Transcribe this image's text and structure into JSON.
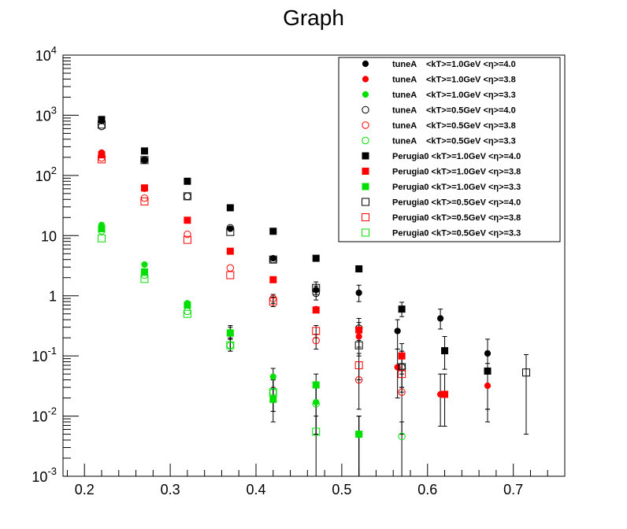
{
  "chart_data": {
    "type": "scatter",
    "title": "Graph",
    "xlabel": "",
    "ylabel": "",
    "y_scale": "log",
    "xlim": [
      0.175,
      0.76
    ],
    "ylim": [
      0.001,
      10000
    ],
    "x_ticks": [
      {
        "value": 0.2,
        "label": "0.2"
      },
      {
        "value": 0.3,
        "label": "0.3"
      },
      {
        "value": 0.4,
        "label": "0.4"
      },
      {
        "value": 0.5,
        "label": "0.5"
      },
      {
        "value": 0.6,
        "label": "0.6"
      },
      {
        "value": 0.7,
        "label": "0.7"
      }
    ],
    "y_ticks": [
      {
        "value": 0.001,
        "base": "10",
        "exp": "-3",
        "plain": ""
      },
      {
        "value": 0.01,
        "base": "10",
        "exp": "-2",
        "plain": ""
      },
      {
        "value": 0.1,
        "base": "10",
        "exp": "-1",
        "plain": ""
      },
      {
        "value": 1,
        "base": "",
        "exp": "",
        "plain": "1"
      },
      {
        "value": 10,
        "base": "",
        "exp": "",
        "plain": "10"
      },
      {
        "value": 100,
        "base": "10",
        "exp": "2",
        "plain": ""
      },
      {
        "value": 1000,
        "base": "10",
        "exp": "3",
        "plain": ""
      },
      {
        "value": 10000,
        "base": "10",
        "exp": "4",
        "plain": ""
      }
    ],
    "grid": false,
    "legend_position": "top-right",
    "series": [
      {
        "name": "tuneA    <kT>=1.0GeV <η>=4.0",
        "marker": "circle",
        "filled": true,
        "color": "#000000",
        "points": [
          [
            0.22,
            800,
            null,
            null
          ],
          [
            0.27,
            180,
            null,
            null
          ],
          [
            0.32,
            80,
            null,
            null
          ],
          [
            0.37,
            13,
            null,
            null
          ],
          [
            0.42,
            4.2,
            null,
            null
          ],
          [
            0.47,
            1.25,
            null,
            null
          ],
          [
            0.52,
            1.12,
            0.8,
            1.5
          ],
          [
            0.565,
            0.26,
            0.13,
            0.4
          ],
          [
            0.615,
            0.42,
            0.28,
            0.6
          ],
          [
            0.67,
            0.11,
            0.013,
            0.19
          ]
        ]
      },
      {
        "name": "tuneA    <kT>=1.0GeV <η>=3.8",
        "marker": "circle",
        "filled": true,
        "color": "#ff0000",
        "points": [
          [
            0.22,
            240,
            null,
            null
          ],
          [
            0.27,
            60,
            null,
            null
          ],
          [
            0.32,
            18,
            null,
            null
          ],
          [
            0.37,
            5.5,
            null,
            null
          ],
          [
            0.42,
            1.85,
            null,
            null
          ],
          [
            0.47,
            0.6,
            null,
            null
          ],
          [
            0.52,
            0.21,
            0.14,
            0.29
          ],
          [
            0.565,
            0.065,
            0.02,
            0.13
          ],
          [
            0.615,
            0.023,
            0.0068,
            0.05
          ],
          [
            0.67,
            0.032,
            0.008,
            0.075
          ]
        ]
      },
      {
        "name": "tuneA    <kT>=1.0GeV <η>=3.3",
        "marker": "circle",
        "filled": true,
        "color": "#00e000",
        "points": [
          [
            0.22,
            15,
            null,
            null
          ],
          [
            0.27,
            3.3,
            null,
            null
          ],
          [
            0.32,
            0.75,
            null,
            null
          ],
          [
            0.37,
            0.25,
            0.2,
            0.32
          ],
          [
            0.42,
            0.045,
            0.028,
            0.062
          ],
          [
            0.47,
            0.017,
            0.005,
            0.03
          ],
          [
            0.52,
            0.005,
            0.001,
            0.01
          ]
        ]
      },
      {
        "name": "tuneA    <kT>=0.5GeV <η>=4.0",
        "marker": "circle",
        "filled": false,
        "color": "#000000",
        "points": [
          [
            0.22,
            650,
            null,
            null
          ],
          [
            0.27,
            180,
            null,
            null
          ],
          [
            0.32,
            45,
            null,
            null
          ],
          [
            0.37,
            13.5,
            null,
            null
          ],
          [
            0.42,
            4,
            null,
            null
          ],
          [
            0.47,
            1.1,
            0.85,
            1.45
          ],
          [
            0.52,
            0.29,
            0.2,
            0.42
          ],
          [
            0.57,
            0.065,
            0.03,
            0.12
          ]
        ]
      },
      {
        "name": "tuneA    <kT>=0.5GeV <η>=3.8",
        "marker": "circle",
        "filled": false,
        "color": "#ff0000",
        "points": [
          [
            0.22,
            195,
            null,
            null
          ],
          [
            0.27,
            42,
            null,
            null
          ],
          [
            0.32,
            10.5,
            null,
            null
          ],
          [
            0.37,
            2.9,
            null,
            null
          ],
          [
            0.42,
            0.9,
            0.75,
            1.05
          ],
          [
            0.47,
            0.18,
            0.13,
            0.23
          ],
          [
            0.52,
            0.04,
            0.013,
            0.08
          ],
          [
            0.57,
            0.025,
            0.005,
            0.06
          ]
        ]
      },
      {
        "name": "tuneA    <kT>=0.5GeV <η>=3.3",
        "marker": "circle",
        "filled": false,
        "color": "#00e000",
        "points": [
          [
            0.22,
            12,
            null,
            null
          ],
          [
            0.27,
            2.2,
            null,
            null
          ],
          [
            0.32,
            0.55,
            null,
            null
          ],
          [
            0.37,
            0.15,
            0.12,
            0.19
          ],
          [
            0.42,
            0.025,
            0.012,
            0.04
          ],
          [
            0.47,
            0.016,
            0.005,
            0.03
          ],
          [
            0.52,
            0.005,
            0.001,
            0.01
          ],
          [
            0.57,
            0.0046,
            0.001,
            0.008
          ]
        ]
      },
      {
        "name": "Perugia0 <kT>=1.0GeV <η>=4.0",
        "marker": "square",
        "filled": true,
        "color": "#000000",
        "points": [
          [
            0.22,
            850,
            null,
            null
          ],
          [
            0.27,
            255,
            null,
            null
          ],
          [
            0.32,
            80,
            null,
            null
          ],
          [
            0.37,
            29,
            null,
            null
          ],
          [
            0.42,
            11.8,
            null,
            null
          ],
          [
            0.47,
            4.2,
            null,
            null
          ],
          [
            0.52,
            2.8,
            null,
            null
          ],
          [
            0.57,
            0.6,
            0.45,
            0.78
          ],
          [
            0.62,
            0.122,
            0.06,
            0.21
          ],
          [
            0.67,
            0.056,
            0.013,
            0.12
          ]
        ]
      },
      {
        "name": "Perugia0 <kT>=1.0GeV <η>=3.8",
        "marker": "square",
        "filled": true,
        "color": "#ff0000",
        "points": [
          [
            0.22,
            220,
            null,
            null
          ],
          [
            0.27,
            62,
            null,
            null
          ],
          [
            0.32,
            18,
            null,
            null
          ],
          [
            0.37,
            5.5,
            null,
            null
          ],
          [
            0.42,
            1.85,
            null,
            null
          ],
          [
            0.47,
            0.58,
            null,
            null
          ],
          [
            0.52,
            0.27,
            0.18,
            0.36
          ],
          [
            0.57,
            0.1,
            0.05,
            0.16
          ],
          [
            0.62,
            0.023,
            0.0068,
            0.05
          ]
        ]
      },
      {
        "name": "Perugia0 <kT>=1.0GeV <η>=3.3",
        "marker": "square",
        "filled": true,
        "color": "#00e000",
        "points": [
          [
            0.22,
            13,
            null,
            null
          ],
          [
            0.27,
            2.5,
            null,
            null
          ],
          [
            0.32,
            0.7,
            null,
            null
          ],
          [
            0.37,
            0.24,
            0.19,
            0.3
          ],
          [
            0.42,
            0.019,
            0.008,
            0.03
          ],
          [
            0.47,
            0.033,
            0.018,
            0.05
          ],
          [
            0.52,
            0.005,
            0.001,
            0.01
          ]
        ]
      },
      {
        "name": "Perugia0 <kT>=0.5GeV <η>=4.0",
        "marker": "square",
        "filled": false,
        "color": "#000000",
        "points": [
          [
            0.22,
            700,
            null,
            null
          ],
          [
            0.27,
            180,
            null,
            null
          ],
          [
            0.32,
            45,
            null,
            null
          ],
          [
            0.37,
            11.5,
            null,
            null
          ],
          [
            0.42,
            4,
            null,
            null
          ],
          [
            0.47,
            1.35,
            1.05,
            1.7
          ],
          [
            0.52,
            0.15,
            0.1,
            0.22
          ],
          [
            0.57,
            0.065,
            0.03,
            0.12
          ],
          [
            0.715,
            0.053,
            0.005,
            0.105
          ]
        ]
      },
      {
        "name": "Perugia0 <kT>=0.5GeV <η>=3.8",
        "marker": "square",
        "filled": false,
        "color": "#ff0000",
        "points": [
          [
            0.22,
            185,
            null,
            null
          ],
          [
            0.27,
            37,
            null,
            null
          ],
          [
            0.32,
            8.5,
            null,
            null
          ],
          [
            0.37,
            2.2,
            null,
            null
          ],
          [
            0.42,
            0.8,
            0.66,
            0.95
          ],
          [
            0.47,
            0.26,
            0.2,
            0.32
          ],
          [
            0.52,
            0.07,
            0.04,
            0.11
          ],
          [
            0.57,
            0.05,
            0.025,
            0.09
          ]
        ]
      },
      {
        "name": "Perugia0 <kT>=0.5GeV <η>=3.3",
        "marker": "square",
        "filled": false,
        "color": "#00e000",
        "points": [
          [
            0.22,
            9,
            null,
            null
          ],
          [
            0.27,
            1.9,
            null,
            null
          ],
          [
            0.32,
            0.5,
            null,
            null
          ],
          [
            0.37,
            0.15,
            0.12,
            0.19
          ],
          [
            0.42,
            0.025,
            0.012,
            0.04
          ],
          [
            0.47,
            0.0055,
            0.001,
            0.01
          ]
        ]
      }
    ]
  }
}
